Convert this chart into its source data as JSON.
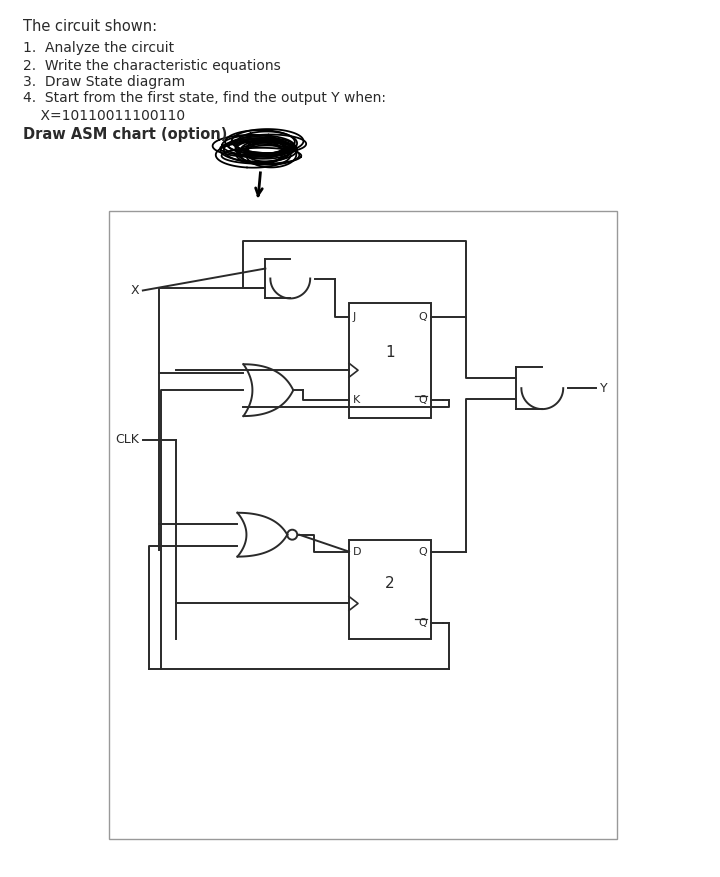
{
  "bg_color": "#ffffff",
  "line_color": "#2a2a2a",
  "title": "The circuit shown:",
  "items": [
    "1.  Analyze the circuit",
    "2.  Write the characteristic equations",
    "3.  Draw State diagram",
    "4.  Start from the first state, find the output Y when:"
  ],
  "x_value": "    X=10110011100110",
  "asm_text": "Draw ASM chart (option)",
  "title_fontsize": 10.5,
  "body_fontsize": 10,
  "asm_fontsize": 10.5
}
